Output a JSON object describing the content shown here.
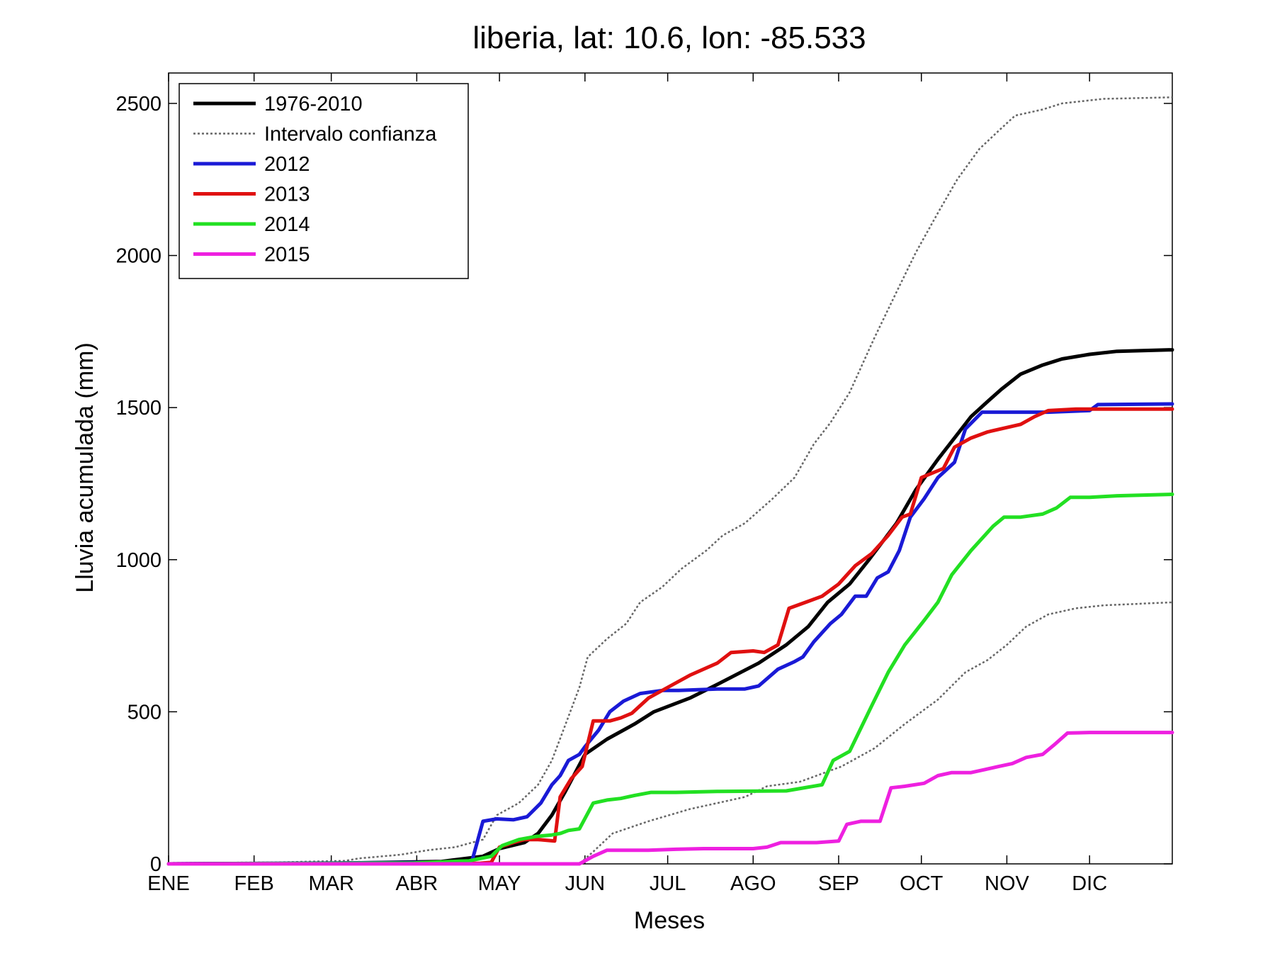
{
  "chart_data": {
    "type": "line",
    "title": "liberia, lat: 10.6, lon: -85.533",
    "xlabel": "Meses",
    "ylabel": "Lluvia acumulada (mm)",
    "x_unit": "day of year",
    "xlim": [
      1,
      365
    ],
    "ylim": [
      0,
      2600
    ],
    "yticks": [
      0,
      500,
      1000,
      1500,
      2000,
      2500
    ],
    "xticks": [
      {
        "label": "ENE",
        "x": 1
      },
      {
        "label": "FEB",
        "x": 32
      },
      {
        "label": "MAR",
        "x": 60
      },
      {
        "label": "ABR",
        "x": 91
      },
      {
        "label": "MAY",
        "x": 121
      },
      {
        "label": "JUN",
        "x": 152
      },
      {
        "label": "JUL",
        "x": 182
      },
      {
        "label": "AGO",
        "x": 213
      },
      {
        "label": "SEP",
        "x": 244
      },
      {
        "label": "OCT",
        "x": 274
      },
      {
        "label": "NOV",
        "x": 305
      },
      {
        "label": "DIC",
        "x": 335
      }
    ],
    "grid": false,
    "legend_position": "top-left",
    "series": [
      {
        "name": "1976-2010",
        "color": "#000000",
        "style": "solid",
        "points": [
          [
            1,
            0
          ],
          [
            60,
            2
          ],
          [
            100,
            8
          ],
          [
            115,
            25
          ],
          [
            121,
            50
          ],
          [
            130,
            70
          ],
          [
            135,
            100
          ],
          [
            140,
            160
          ],
          [
            145,
            240
          ],
          [
            152,
            360
          ],
          [
            160,
            410
          ],
          [
            170,
            460
          ],
          [
            177,
            500
          ],
          [
            190,
            545
          ],
          [
            200,
            590
          ],
          [
            215,
            660
          ],
          [
            225,
            720
          ],
          [
            233,
            780
          ],
          [
            240,
            860
          ],
          [
            248,
            920
          ],
          [
            255,
            1000
          ],
          [
            265,
            1120
          ],
          [
            272,
            1230
          ],
          [
            280,
            1330
          ],
          [
            286,
            1400
          ],
          [
            292,
            1470
          ],
          [
            298,
            1520
          ],
          [
            303,
            1560
          ],
          [
            310,
            1610
          ],
          [
            318,
            1640
          ],
          [
            325,
            1660
          ],
          [
            335,
            1675
          ],
          [
            345,
            1685
          ],
          [
            365,
            1690
          ]
        ]
      },
      {
        "name": "Intervalo confianza",
        "color": "#666666",
        "style": "dotted",
        "points": [
          [
            1,
            3
          ],
          [
            40,
            5
          ],
          [
            65,
            10
          ],
          [
            70,
            18
          ],
          [
            85,
            30
          ],
          [
            95,
            45
          ],
          [
            105,
            55
          ],
          [
            115,
            80
          ],
          [
            120,
            160
          ],
          [
            128,
            200
          ],
          [
            135,
            260
          ],
          [
            140,
            340
          ],
          [
            145,
            460
          ],
          [
            150,
            580
          ],
          [
            153,
            680
          ],
          [
            160,
            740
          ],
          [
            167,
            790
          ],
          [
            172,
            860
          ],
          [
            180,
            910
          ],
          [
            187,
            970
          ],
          [
            196,
            1030
          ],
          [
            202,
            1080
          ],
          [
            210,
            1120
          ],
          [
            220,
            1200
          ],
          [
            228,
            1270
          ],
          [
            235,
            1380
          ],
          [
            241,
            1450
          ],
          [
            248,
            1550
          ],
          [
            257,
            1730
          ],
          [
            265,
            1880
          ],
          [
            272,
            2010
          ],
          [
            280,
            2140
          ],
          [
            287,
            2250
          ],
          [
            295,
            2350
          ],
          [
            302,
            2410
          ],
          [
            308,
            2460
          ],
          [
            318,
            2480
          ],
          [
            325,
            2500
          ],
          [
            340,
            2515
          ],
          [
            365,
            2520
          ]
        ]
      },
      {
        "name": "Intervalo confianza",
        "color": "#666666",
        "style": "dotted",
        "points": [
          [
            1,
            0
          ],
          [
            125,
            0
          ],
          [
            150,
            0
          ],
          [
            155,
            40
          ],
          [
            162,
            100
          ],
          [
            175,
            140
          ],
          [
            190,
            180
          ],
          [
            200,
            200
          ],
          [
            210,
            220
          ],
          [
            218,
            255
          ],
          [
            230,
            270
          ],
          [
            245,
            320
          ],
          [
            257,
            380
          ],
          [
            268,
            460
          ],
          [
            280,
            540
          ],
          [
            290,
            630
          ],
          [
            298,
            670
          ],
          [
            305,
            720
          ],
          [
            312,
            780
          ],
          [
            320,
            820
          ],
          [
            330,
            840
          ],
          [
            340,
            850
          ],
          [
            365,
            860
          ]
        ]
      },
      {
        "name": "2012",
        "color": "#1a1ad6",
        "style": "solid",
        "points": [
          [
            1,
            0
          ],
          [
            102,
            5
          ],
          [
            111,
            8
          ],
          [
            115,
            140
          ],
          [
            120,
            148
          ],
          [
            126,
            145
          ],
          [
            131,
            155
          ],
          [
            136,
            200
          ],
          [
            140,
            260
          ],
          [
            143,
            290
          ],
          [
            146,
            340
          ],
          [
            150,
            360
          ],
          [
            152,
            385
          ],
          [
            157,
            440
          ],
          [
            161,
            500
          ],
          [
            166,
            535
          ],
          [
            172,
            560
          ],
          [
            180,
            570
          ],
          [
            186,
            570
          ],
          [
            200,
            575
          ],
          [
            210,
            575
          ],
          [
            215,
            585
          ],
          [
            222,
            640
          ],
          [
            228,
            665
          ],
          [
            231,
            680
          ],
          [
            235,
            730
          ],
          [
            241,
            790
          ],
          [
            245,
            820
          ],
          [
            250,
            880
          ],
          [
            254,
            880
          ],
          [
            258,
            940
          ],
          [
            262,
            960
          ],
          [
            266,
            1030
          ],
          [
            270,
            1140
          ],
          [
            275,
            1200
          ],
          [
            280,
            1270
          ],
          [
            286,
            1320
          ],
          [
            290,
            1430
          ],
          [
            296,
            1485
          ],
          [
            310,
            1485
          ],
          [
            320,
            1485
          ],
          [
            335,
            1490
          ],
          [
            338,
            1510
          ],
          [
            365,
            1512
          ]
        ]
      },
      {
        "name": "2013",
        "color": "#e01010",
        "style": "solid",
        "points": [
          [
            1,
            0
          ],
          [
            114,
            2
          ],
          [
            118,
            5
          ],
          [
            121,
            55
          ],
          [
            126,
            70
          ],
          [
            130,
            80
          ],
          [
            135,
            80
          ],
          [
            141,
            75
          ],
          [
            143,
            220
          ],
          [
            147,
            280
          ],
          [
            151,
            320
          ],
          [
            155,
            470
          ],
          [
            161,
            470
          ],
          [
            165,
            480
          ],
          [
            169,
            495
          ],
          [
            175,
            545
          ],
          [
            182,
            580
          ],
          [
            190,
            620
          ],
          [
            200,
            660
          ],
          [
            205,
            695
          ],
          [
            213,
            700
          ],
          [
            217,
            695
          ],
          [
            222,
            720
          ],
          [
            226,
            840
          ],
          [
            232,
            860
          ],
          [
            238,
            880
          ],
          [
            244,
            920
          ],
          [
            250,
            980
          ],
          [
            256,
            1020
          ],
          [
            262,
            1080
          ],
          [
            267,
            1140
          ],
          [
            270,
            1150
          ],
          [
            274,
            1270
          ],
          [
            282,
            1300
          ],
          [
            286,
            1370
          ],
          [
            292,
            1400
          ],
          [
            298,
            1420
          ],
          [
            310,
            1445
          ],
          [
            315,
            1470
          ],
          [
            320,
            1490
          ],
          [
            330,
            1495
          ],
          [
            365,
            1495
          ]
        ]
      },
      {
        "name": "2014",
        "color": "#22e022",
        "style": "solid",
        "points": [
          [
            1,
            0
          ],
          [
            90,
            3
          ],
          [
            110,
            10
          ],
          [
            118,
            25
          ],
          [
            122,
            60
          ],
          [
            128,
            80
          ],
          [
            134,
            90
          ],
          [
            140,
            95
          ],
          [
            143,
            100
          ],
          [
            146,
            110
          ],
          [
            150,
            115
          ],
          [
            155,
            200
          ],
          [
            160,
            210
          ],
          [
            165,
            215
          ],
          [
            170,
            225
          ],
          [
            176,
            235
          ],
          [
            185,
            235
          ],
          [
            200,
            238
          ],
          [
            225,
            240
          ],
          [
            238,
            260
          ],
          [
            242,
            340
          ],
          [
            248,
            370
          ],
          [
            252,
            445
          ],
          [
            256,
            520
          ],
          [
            262,
            630
          ],
          [
            268,
            720
          ],
          [
            275,
            800
          ],
          [
            280,
            860
          ],
          [
            285,
            950
          ],
          [
            292,
            1030
          ],
          [
            300,
            1110
          ],
          [
            304,
            1140
          ],
          [
            310,
            1140
          ],
          [
            318,
            1150
          ],
          [
            323,
            1170
          ],
          [
            328,
            1205
          ],
          [
            335,
            1205
          ],
          [
            345,
            1210
          ],
          [
            365,
            1215
          ]
        ]
      },
      {
        "name": "2015",
        "color": "#ee20e0",
        "style": "solid",
        "points": [
          [
            1,
            0
          ],
          [
            145,
            0
          ],
          [
            150,
            0
          ],
          [
            155,
            25
          ],
          [
            160,
            45
          ],
          [
            175,
            45
          ],
          [
            185,
            48
          ],
          [
            195,
            50
          ],
          [
            213,
            50
          ],
          [
            218,
            55
          ],
          [
            223,
            70
          ],
          [
            236,
            70
          ],
          [
            244,
            75
          ],
          [
            247,
            130
          ],
          [
            252,
            140
          ],
          [
            259,
            140
          ],
          [
            263,
            250
          ],
          [
            268,
            255
          ],
          [
            275,
            265
          ],
          [
            280,
            290
          ],
          [
            285,
            300
          ],
          [
            292,
            300
          ],
          [
            297,
            310
          ],
          [
            302,
            320
          ],
          [
            307,
            330
          ],
          [
            312,
            350
          ],
          [
            318,
            360
          ],
          [
            322,
            390
          ],
          [
            327,
            430
          ],
          [
            335,
            432
          ],
          [
            365,
            432
          ]
        ]
      }
    ]
  }
}
